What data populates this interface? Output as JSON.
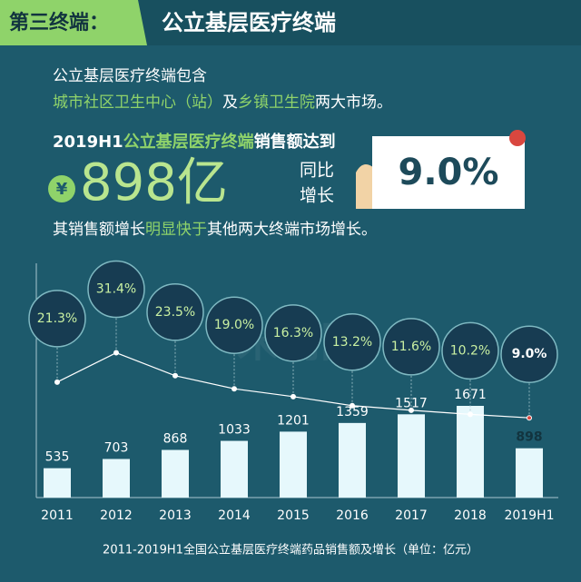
{
  "header": {
    "tag": "第三终端：",
    "title": "公立基层医疗终端"
  },
  "intro": {
    "line1": "公立基层医疗终端包含",
    "line2": [
      {
        "text": "城市社区卫生中心（站）",
        "color": "#8fd36a"
      },
      {
        "text": "及",
        "color": "#ffffff"
      },
      {
        "text": "乡镇卫生院",
        "color": "#8fd36a"
      },
      {
        "text": "两大市场。",
        "color": "#ffffff"
      }
    ]
  },
  "highlight": {
    "line": [
      {
        "text": "2019H1",
        "color": "#ffffff"
      },
      {
        "text": "公立基层医疗终端",
        "color": "#8fd36a"
      },
      {
        "text": "销售额达到",
        "color": "#ffffff"
      }
    ],
    "currency": "¥",
    "amount": "898亿",
    "growth_label_1": "同比",
    "growth_label_2": "增长",
    "growth": "9.0%"
  },
  "conclusion": [
    {
      "text": "其销售额增长",
      "color": "#ffffff"
    },
    {
      "text": "明显快于",
      "color": "#8fd36a"
    },
    {
      "text": "其他两大终端市场增长。",
      "color": "#ffffff"
    }
  ],
  "watermark": "米内网",
  "chart_data": {
    "type": "bar-line",
    "categories": [
      "2011",
      "2012",
      "2013",
      "2014",
      "2015",
      "2016",
      "2017",
      "2018",
      "2019H1"
    ],
    "series": [
      {
        "type": "bar",
        "color": "#e6f8fc",
        "values": [
          535,
          703,
          868,
          1033,
          1201,
          1359,
          1517,
          1671,
          898
        ]
      },
      {
        "type": "line",
        "color": "#ffffff",
        "values": [
          21.3,
          31.4,
          23.5,
          19.0,
          16.3,
          13.2,
          11.6,
          10.2,
          9.0
        ],
        "value_labels": [
          "21.3%",
          "31.4%",
          "23.5%",
          "19.0%",
          "16.3%",
          "13.2%",
          "11.6%",
          "10.2%",
          "9.0%"
        ]
      }
    ],
    "caption": "2011-2019H1全国公立基层医疗终端药品销售额及增长（单位：亿元）"
  }
}
